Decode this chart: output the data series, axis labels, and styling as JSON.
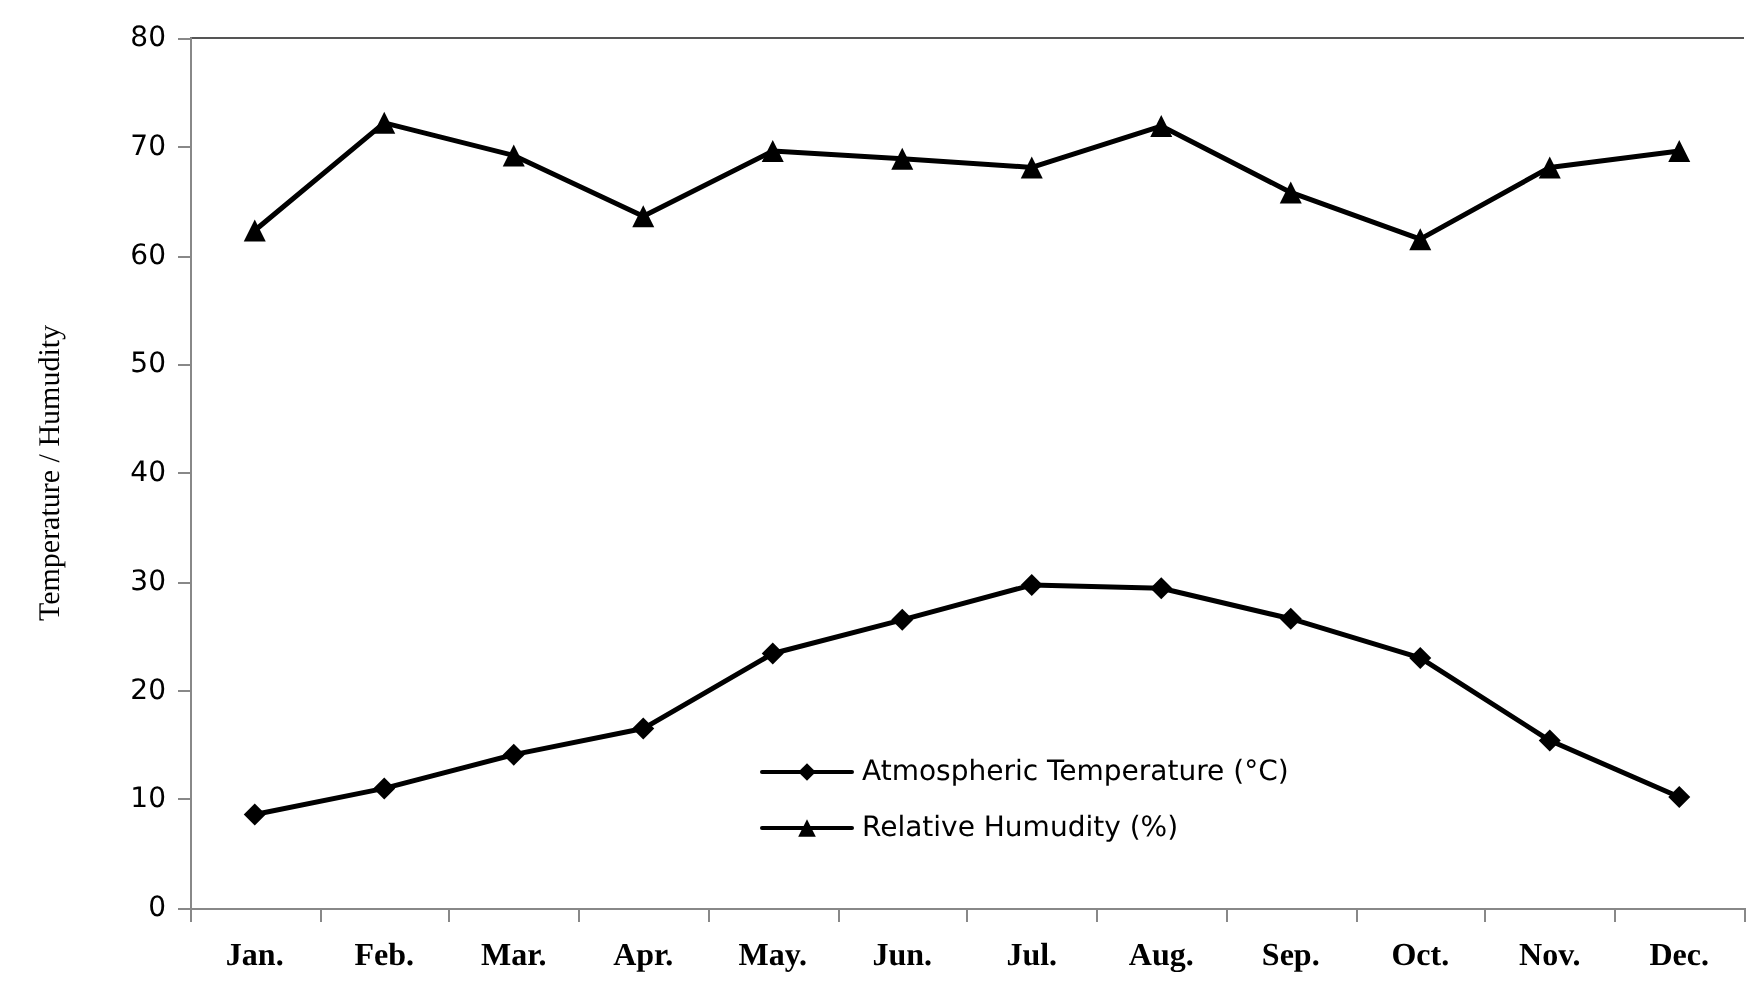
{
  "chart_data": {
    "type": "line",
    "ylabel": "Temperature / Humudity",
    "categories": [
      "Jan.",
      "Feb.",
      "Mar.",
      "Apr.",
      "May.",
      "Jun.",
      "Jul.",
      "Aug.",
      "Sep.",
      "Oct.",
      "Nov.",
      "Dec."
    ],
    "series": [
      {
        "name": "Atmospheric Temperature (°C)",
        "color": "#000000",
        "marker": "diamond",
        "values": [
          8.6,
          11.0,
          14.1,
          16.5,
          23.4,
          26.5,
          29.7,
          29.4,
          26.6,
          23.0,
          15.4,
          10.2
        ]
      },
      {
        "name": "Relative Humudity (%)",
        "color": "#000000",
        "marker": "triangle",
        "values": [
          62.3,
          72.2,
          69.2,
          63.6,
          69.6,
          68.9,
          68.1,
          71.9,
          65.8,
          61.5,
          68.1,
          69.6
        ]
      }
    ],
    "ylim": [
      0,
      80
    ],
    "yticks": [
      0,
      10,
      20,
      30,
      40,
      50,
      60,
      70,
      80
    ],
    "grid": false,
    "legend": "bottom",
    "line_style": "solid"
  }
}
